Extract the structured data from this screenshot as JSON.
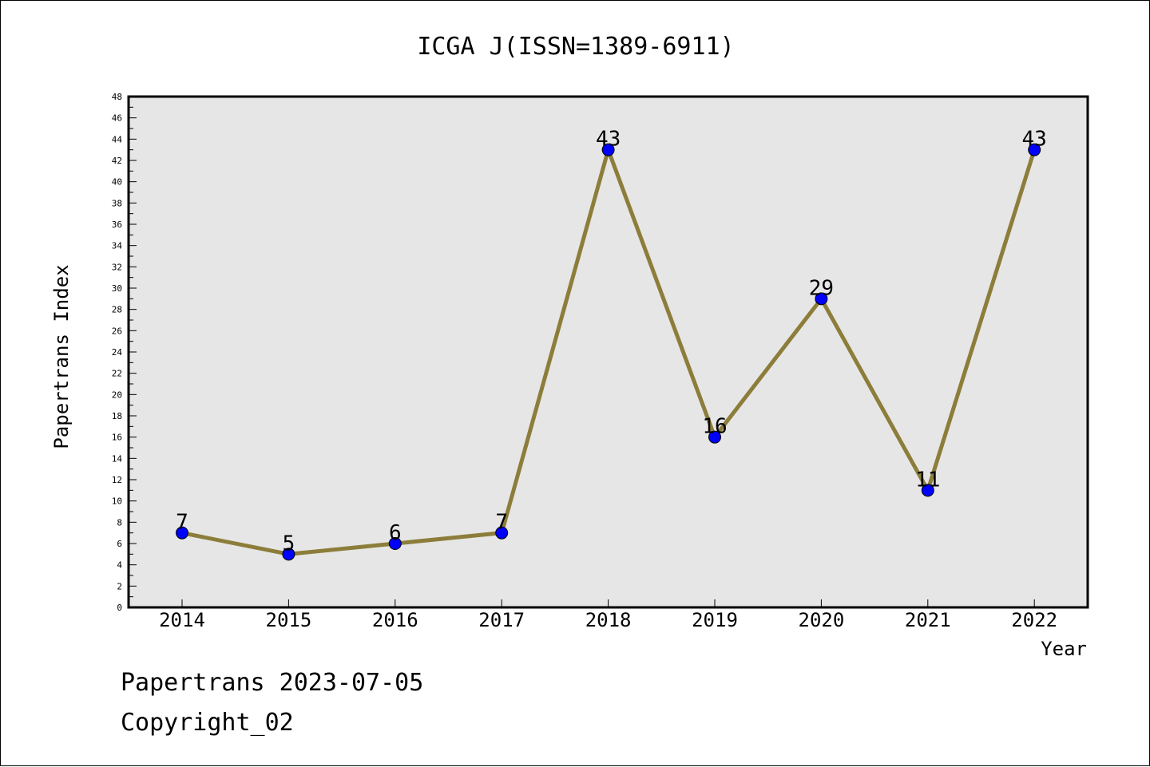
{
  "chart_data": {
    "type": "line",
    "title": "ICGA J(ISSN=1389-6911)",
    "xlabel": "Year",
    "ylabel": "Papertrans Index",
    "categories": [
      "2014",
      "2015",
      "2016",
      "2017",
      "2018",
      "2019",
      "2020",
      "2021",
      "2022"
    ],
    "series": [
      {
        "values": [
          7,
          5,
          6,
          7,
          43,
          16,
          29,
          11,
          43
        ]
      }
    ],
    "ylim": [
      0,
      48
    ],
    "ytick_step": 2,
    "grid": false,
    "data_labels": true,
    "colors": {
      "line": "#8c7d3a",
      "marker": "#0000ff",
      "plot_background": "#e6e6e6"
    }
  },
  "footer": {
    "line1": "Papertrans 2023-07-05",
    "line2": "Copyright_02"
  }
}
